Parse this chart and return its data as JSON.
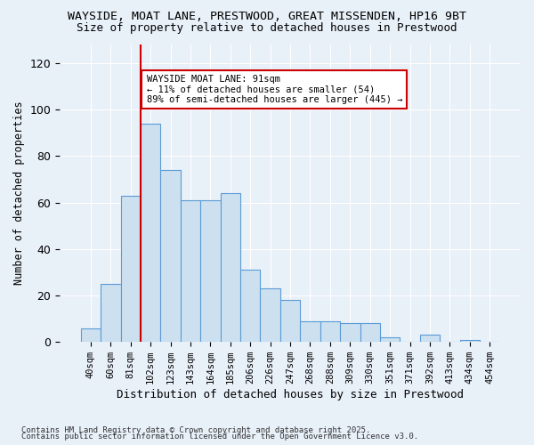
{
  "title_line1": "WAYSIDE, MOAT LANE, PRESTWOOD, GREAT MISSENDEN, HP16 9BT",
  "title_line2": "Size of property relative to detached houses in Prestwood",
  "xlabel": "Distribution of detached houses by size in Prestwood",
  "ylabel": "Number of detached properties",
  "footnote1": "Contains HM Land Registry data © Crown copyright and database right 2025.",
  "footnote2": "Contains public sector information licensed under the Open Government Licence v3.0.",
  "bar_labels": [
    "40sqm",
    "60sqm",
    "81sqm",
    "102sqm",
    "123sqm",
    "143sqm",
    "164sqm",
    "185sqm",
    "206sqm",
    "226sqm",
    "247sqm",
    "268sqm",
    "288sqm",
    "309sqm",
    "330sqm",
    "351sqm",
    "371sqm",
    "392sqm",
    "413sqm",
    "434sqm",
    "454sqm"
  ],
  "bar_values": [
    6,
    25,
    63,
    94,
    74,
    61,
    61,
    64,
    31,
    23,
    18,
    9,
    9,
    8,
    8,
    2,
    0,
    3,
    0,
    1,
    0
  ],
  "bar_color": "#cce0f0",
  "bar_edge_color": "#5b9bd5",
  "vline_x": 2.5,
  "vline_color": "#cc0000",
  "annotation_text": "WAYSIDE MOAT LANE: 91sqm\n← 11% of detached houses are smaller (54)\n89% of semi-detached houses are larger (445) →",
  "annotation_box_color": "#ffffff",
  "annotation_box_edge_color": "#cc0000",
  "ylim": [
    0,
    128
  ],
  "yticks": [
    0,
    20,
    40,
    60,
    80,
    100,
    120
  ],
  "background_color": "#e8f0f8",
  "grid_color": "#ffffff"
}
